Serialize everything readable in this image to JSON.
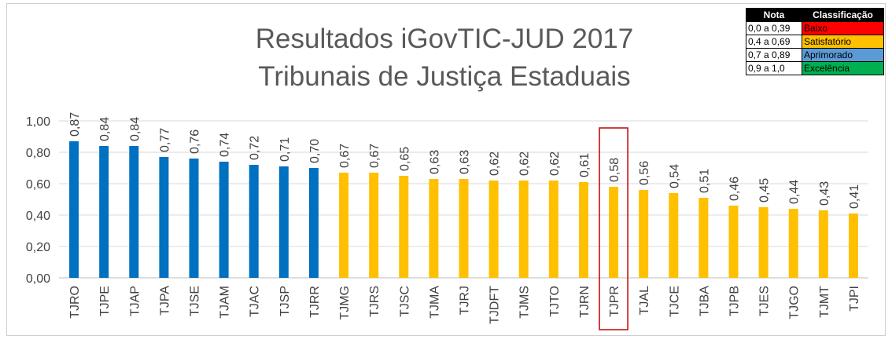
{
  "chart_data": {
    "type": "bar",
    "title": [
      "Resultados iGovTIC-JUD 2017",
      "Tribunais de Justiça Estaduais"
    ],
    "xlabel": "",
    "ylabel": "",
    "ylim": [
      0,
      1.0
    ],
    "yticks": [
      "0,00",
      "0,20",
      "0,40",
      "0,60",
      "0,80",
      "1,00"
    ],
    "grid": true,
    "categories": [
      "TJRO",
      "TJPE",
      "TJAP",
      "TJPA",
      "TJSE",
      "TJAM",
      "TJAC",
      "TJSP",
      "TJRR",
      "TJMG",
      "TJRS",
      "TJSC",
      "TJMA",
      "TJRJ",
      "TJDFT",
      "TJMS",
      "TJTO",
      "TJRN",
      "TJPR",
      "TJAL",
      "TJCE",
      "TJBA",
      "TJPB",
      "TJES",
      "TJGO",
      "TJMT",
      "TJPI"
    ],
    "values": [
      0.87,
      0.84,
      0.84,
      0.77,
      0.76,
      0.74,
      0.72,
      0.71,
      0.7,
      0.67,
      0.67,
      0.65,
      0.63,
      0.63,
      0.62,
      0.62,
      0.62,
      0.61,
      0.58,
      0.56,
      0.54,
      0.51,
      0.46,
      0.45,
      0.44,
      0.43,
      0.41
    ],
    "value_labels": [
      "0,87",
      "0,84",
      "0,84",
      "0,77",
      "0,76",
      "0,74",
      "0,72",
      "0,71",
      "0,70",
      "0,67",
      "0,67",
      "0,65",
      "0,63",
      "0,63",
      "0,62",
      "0,62",
      "0,62",
      "0,61",
      "0,58",
      "0,56",
      "0,54",
      "0,51",
      "0,46",
      "0,45",
      "0,44",
      "0,43",
      "0,41"
    ],
    "highlighted_category": "TJPR",
    "highlight_color": "#c00000",
    "legend_position": "top-right",
    "legend": {
      "headers": [
        "Nota",
        "Classificação"
      ],
      "rows": [
        {
          "range": "0,0 a 0,39",
          "label": "Baixo",
          "color": "#ff0000"
        },
        {
          "range": "0,4 a 0,69",
          "label": "Satisfatório",
          "color": "#ffc000"
        },
        {
          "range": "0,7 a 0,89",
          "label": "Aprimorado",
          "color": "#5b9bd5"
        },
        {
          "range": "0,9 a 1,0",
          "label": "Excelência",
          "color": "#00b050"
        }
      ]
    },
    "bar_colors": {
      "aprimorado": "#0070c0",
      "satisfatorio": "#ffc000"
    }
  }
}
